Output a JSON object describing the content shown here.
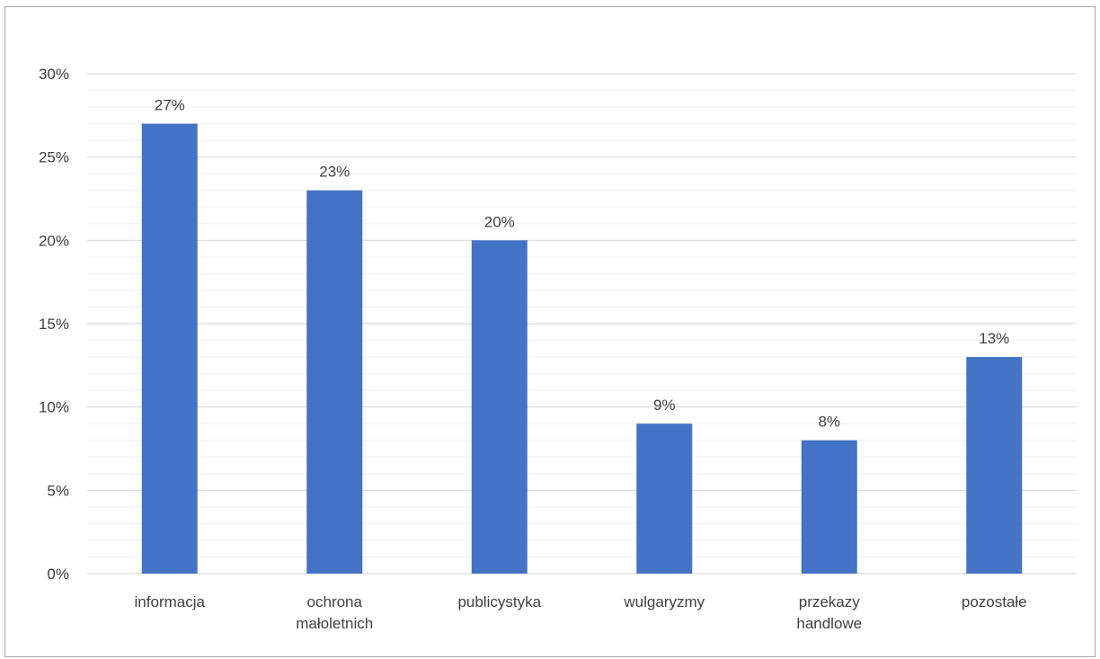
{
  "chart_data": {
    "type": "bar",
    "categories": [
      [
        "informacja"
      ],
      [
        "ochrona",
        "małoletnich"
      ],
      [
        "publicystyka"
      ],
      [
        "wulgaryzmy"
      ],
      [
        "przekazy",
        "handlowe"
      ],
      [
        "pozostałe"
      ]
    ],
    "values": [
      27,
      23,
      20,
      9,
      8,
      13
    ],
    "data_labels": [
      "27%",
      "23%",
      "20%",
      "9%",
      "8%",
      "13%"
    ],
    "yticks": [
      0,
      5,
      10,
      15,
      20,
      25,
      30
    ],
    "ytick_labels": [
      "0%",
      "5%",
      "10%",
      "15%",
      "20%",
      "25%",
      "30%"
    ],
    "ylim": [
      0,
      30
    ],
    "minor_gridlines": true,
    "major_gridlines": true,
    "legend": "none",
    "bar_color": "#4472C4",
    "major_grid_color": "#d9d9d9",
    "minor_grid_color": "#f0f0f0"
  }
}
